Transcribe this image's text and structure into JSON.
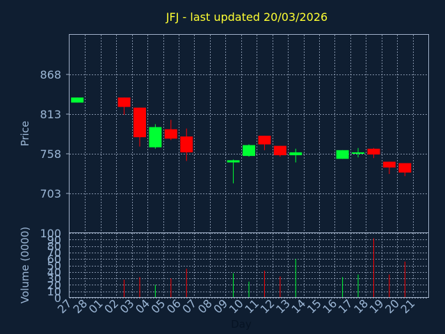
{
  "chart_data": [
    {
      "type": "candlestick",
      "title": "JFJ - last updated 20/03/2026",
      "ylabel": "Price",
      "xlabel": "Day",
      "ylim": [
        648,
        923
      ],
      "yticks": [
        703,
        758,
        813,
        868
      ],
      "grid": true,
      "colors": {
        "up": "#00ff33",
        "down": "#ff0000",
        "background": "#0f1e31",
        "text": "#9cb7d6",
        "title": "#ffff33"
      },
      "categories": [
        "27",
        "28",
        "01",
        "02",
        "03",
        "04",
        "05",
        "06",
        "07",
        "08",
        "09",
        "10",
        "11",
        "12",
        "13",
        "14",
        "15",
        "16",
        "17",
        "18",
        "19",
        "20",
        "21"
      ],
      "candles": [
        {
          "day": "27",
          "open": 829,
          "close": 836,
          "high": 836,
          "low": 829
        },
        {
          "day": "02",
          "open": 836,
          "close": 823,
          "high": 836,
          "low": 812
        },
        {
          "day": "03",
          "open": 822,
          "close": 781,
          "high": 822,
          "low": 768
        },
        {
          "day": "04",
          "open": 767,
          "close": 795,
          "high": 799,
          "low": 765
        },
        {
          "day": "05",
          "open": 792,
          "close": 779,
          "high": 805,
          "low": 777
        },
        {
          "day": "06",
          "open": 782,
          "close": 760,
          "high": 793,
          "low": 748
        },
        {
          "day": "09",
          "open": 746,
          "close": 749,
          "high": 750,
          "low": 717
        },
        {
          "day": "10",
          "open": 755,
          "close": 770,
          "high": 771,
          "low": 754
        },
        {
          "day": "11",
          "open": 783,
          "close": 771,
          "high": 783,
          "low": 763
        },
        {
          "day": "12",
          "open": 769,
          "close": 756,
          "high": 769,
          "low": 754
        },
        {
          "day": "13",
          "open": 756,
          "close": 760,
          "high": 765,
          "low": 746
        },
        {
          "day": "16",
          "open": 751,
          "close": 763,
          "high": 763,
          "low": 751
        },
        {
          "day": "17",
          "open": 758,
          "close": 760,
          "high": 766,
          "low": 753
        },
        {
          "day": "18",
          "open": 765,
          "close": 757,
          "high": 766,
          "low": 752
        },
        {
          "day": "19",
          "open": 747,
          "close": 739,
          "high": 747,
          "low": 730
        },
        {
          "day": "20",
          "open": 745,
          "close": 732,
          "high": 745,
          "low": 727
        }
      ]
    },
    {
      "type": "bar",
      "ylabel": "Volume (0000)",
      "xlabel": "Day",
      "ylim": [
        0,
        100
      ],
      "yticks": [
        0,
        10,
        20,
        30,
        40,
        50,
        60,
        70,
        80,
        90,
        100
      ],
      "grid": true,
      "categories": [
        "27",
        "28",
        "01",
        "02",
        "03",
        "04",
        "05",
        "06",
        "07",
        "08",
        "09",
        "10",
        "11",
        "12",
        "13",
        "14",
        "15",
        "16",
        "17",
        "18",
        "19",
        "20",
        "21"
      ],
      "volumes": [
        {
          "day": "02",
          "value": 28,
          "direction": "down"
        },
        {
          "day": "03",
          "value": 32,
          "direction": "down"
        },
        {
          "day": "04",
          "value": 20,
          "direction": "up"
        },
        {
          "day": "05",
          "value": 30,
          "direction": "down"
        },
        {
          "day": "06",
          "value": 45,
          "direction": "down"
        },
        {
          "day": "09",
          "value": 38,
          "direction": "up"
        },
        {
          "day": "10",
          "value": 25,
          "direction": "up"
        },
        {
          "day": "11",
          "value": 42,
          "direction": "down"
        },
        {
          "day": "12",
          "value": 33,
          "direction": "down"
        },
        {
          "day": "13",
          "value": 60,
          "direction": "up"
        },
        {
          "day": "16",
          "value": 32,
          "direction": "up"
        },
        {
          "day": "17",
          "value": 36,
          "direction": "up"
        },
        {
          "day": "18",
          "value": 92,
          "direction": "down"
        },
        {
          "day": "19",
          "value": 36,
          "direction": "down"
        },
        {
          "day": "20",
          "value": 56,
          "direction": "down"
        }
      ]
    }
  ]
}
